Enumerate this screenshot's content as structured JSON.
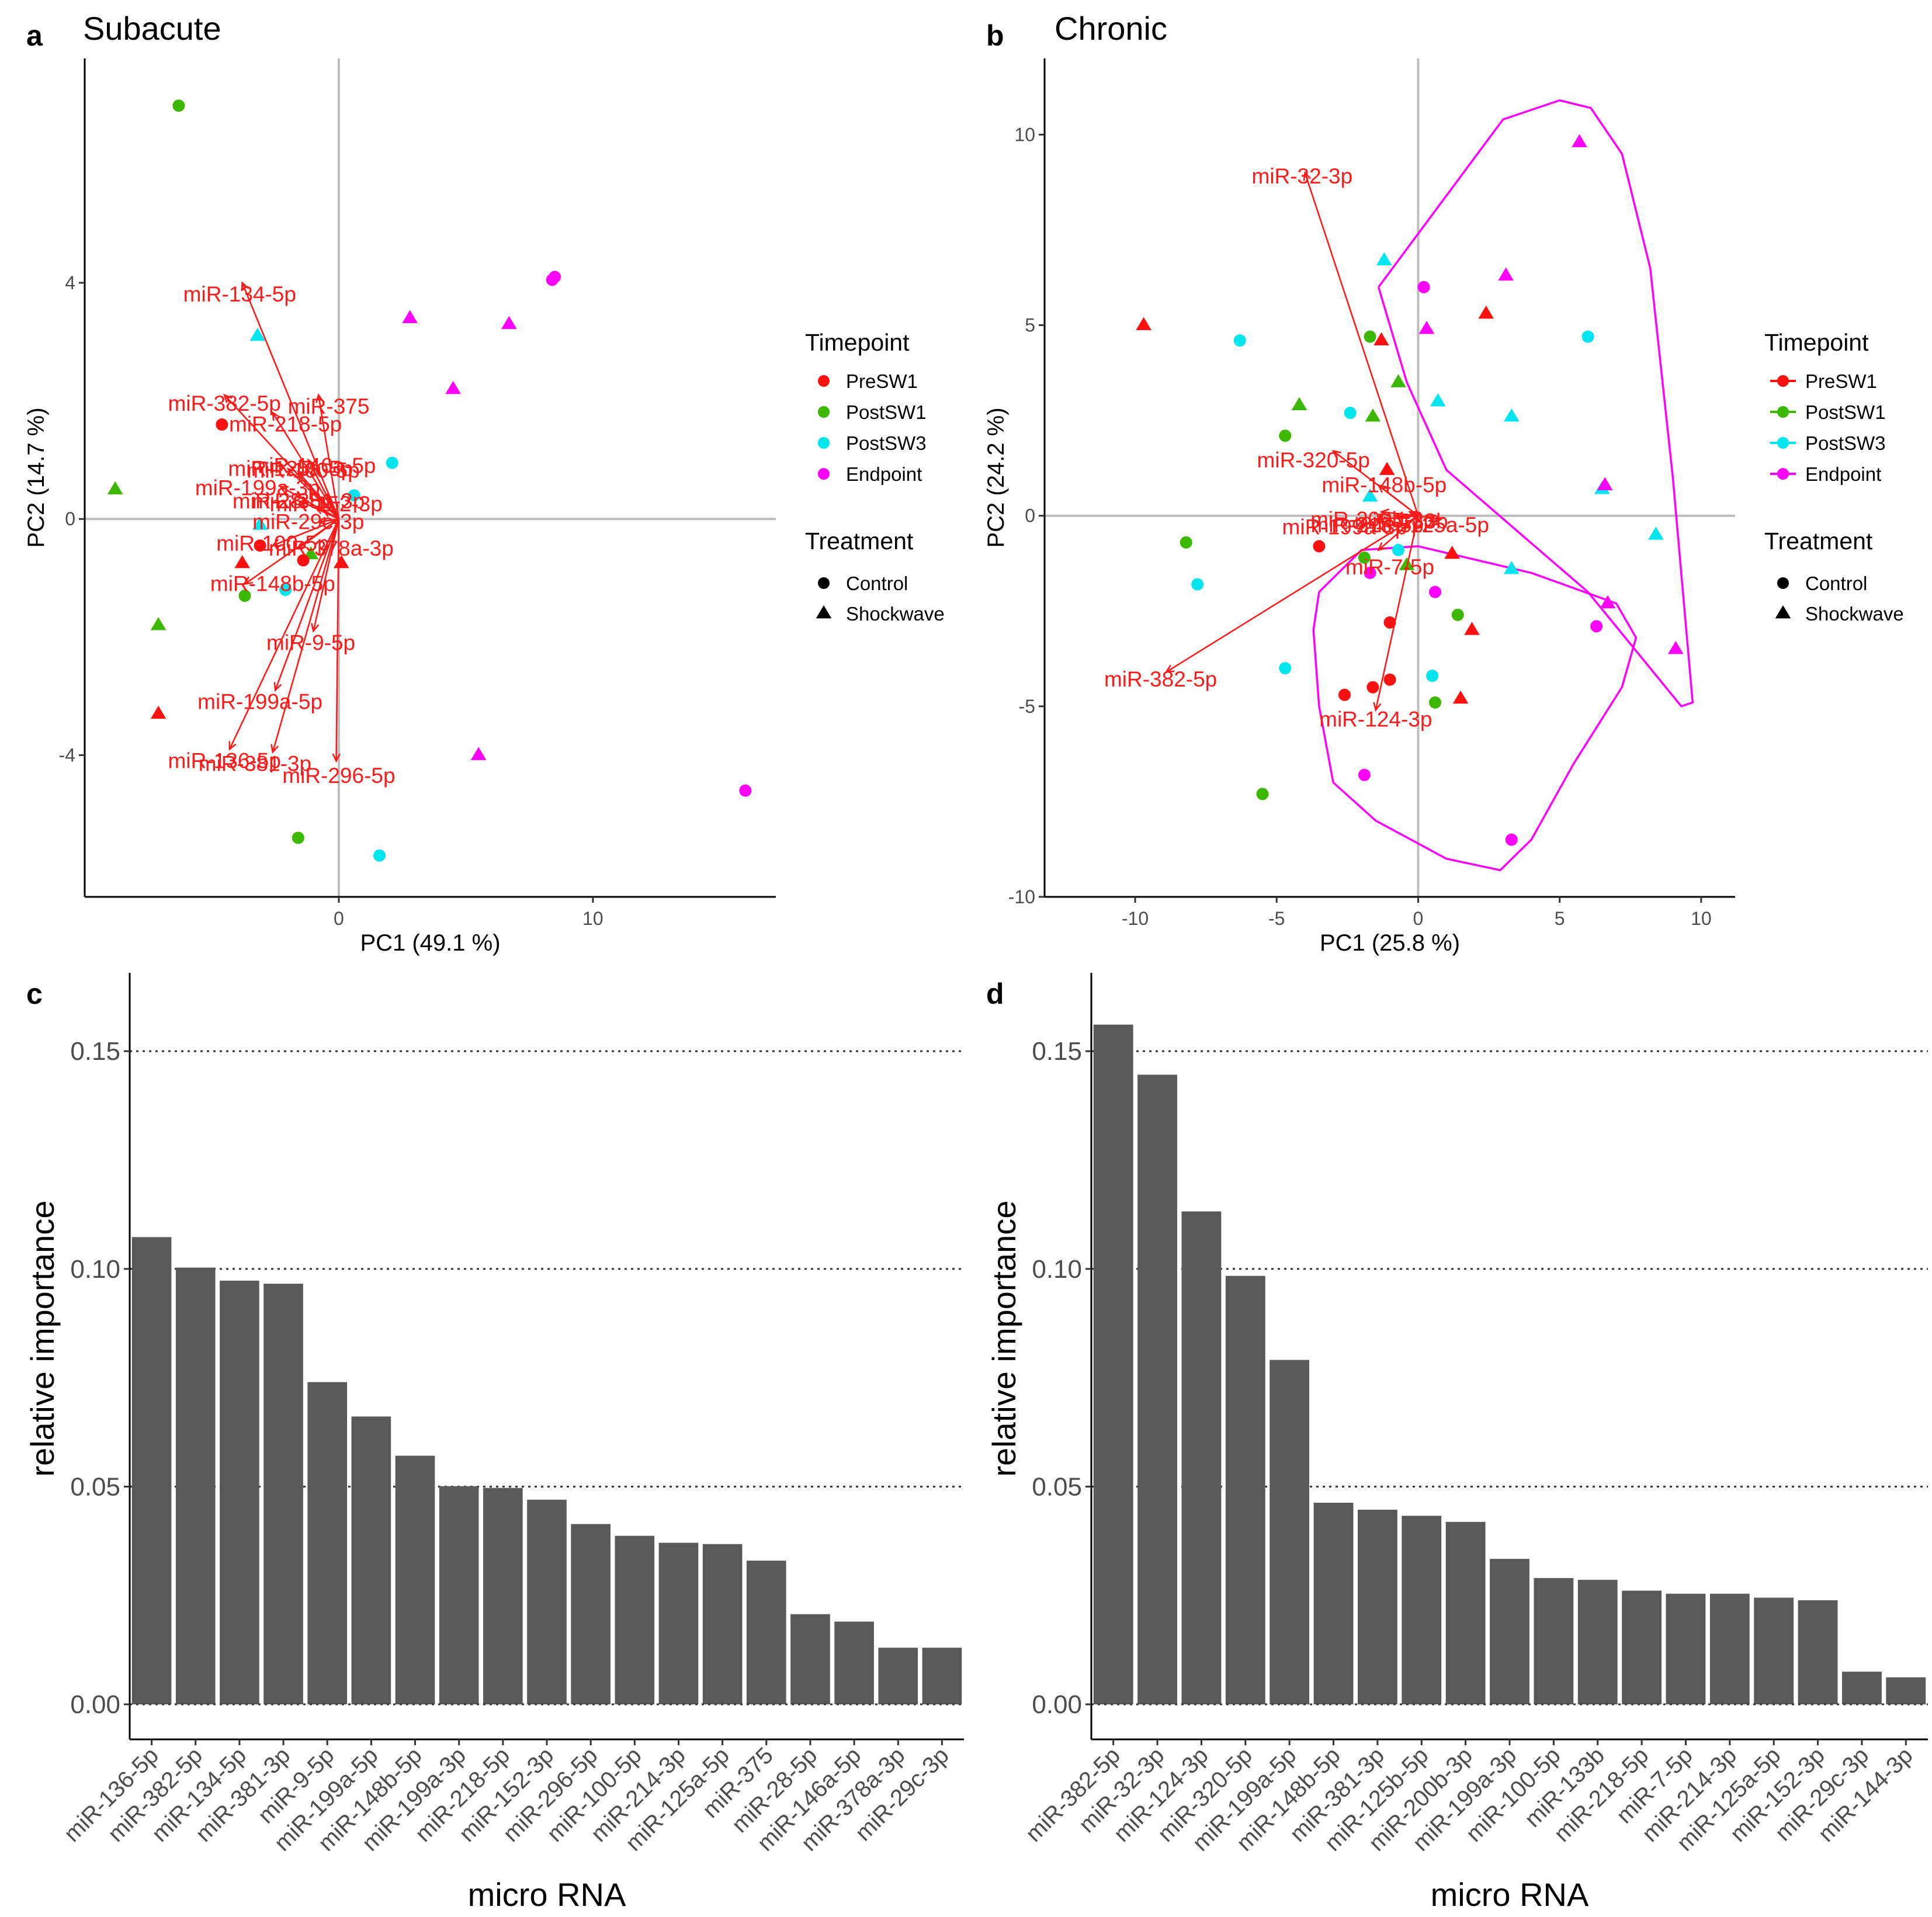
{
  "colors": {
    "text": "#1a1a1a",
    "loading": "#ff1a1a",
    "zero_line": "#bdbdbd",
    "bar_fill": "#595959",
    "grid": "#333333",
    "hull": "#ff00ff",
    "PreSW1": "#ff1010",
    "PostSW1": "#3cb800",
    "PostSW3": "#00e5ee",
    "Endpoint": "#ff00ff"
  },
  "legend": {
    "timepoint_title": "Timepoint",
    "timepoint_items": [
      "PreSW1",
      "PostSW1",
      "PostSW3",
      "Endpoint"
    ],
    "treatment_title": "Treatment",
    "treatment_items": [
      {
        "label": "Control",
        "shape": "circle"
      },
      {
        "label": "Shockwave",
        "shape": "triangle"
      }
    ]
  },
  "chart_data": [
    {
      "panel": "a",
      "type": "scatter",
      "subtype": "pca-biplot",
      "title": "Subacute",
      "xlabel": "PC1 (49.1 %)",
      "ylabel": "PC2 (14.7 %)",
      "xlim": [
        -10,
        17.2
      ],
      "ylim": [
        -6.4,
        7.8
      ],
      "xticks": [
        0,
        10
      ],
      "yticks": [
        -4,
        0,
        4
      ],
      "points": [
        {
          "x": -6.3,
          "y": 7.0,
          "tp": "PostSW1",
          "trt": "Control"
        },
        {
          "x": 8.5,
          "y": 4.1,
          "tp": "Endpoint",
          "trt": "Control"
        },
        {
          "x": 8.4,
          "y": 4.05,
          "tp": "Endpoint",
          "trt": "Control"
        },
        {
          "x": 2.8,
          "y": 3.4,
          "tp": "Endpoint",
          "trt": "Shockwave"
        },
        {
          "x": 6.7,
          "y": 3.3,
          "tp": "Endpoint",
          "trt": "Shockwave"
        },
        {
          "x": -3.2,
          "y": 3.1,
          "tp": "PostSW3",
          "trt": "Shockwave"
        },
        {
          "x": 4.5,
          "y": 2.2,
          "tp": "Endpoint",
          "trt": "Shockwave"
        },
        {
          "x": -4.6,
          "y": 1.6,
          "tp": "PreSW1",
          "trt": "Control"
        },
        {
          "x": 2.1,
          "y": 0.95,
          "tp": "PostSW3",
          "trt": "Control"
        },
        {
          "x": -8.8,
          "y": 0.5,
          "tp": "PostSW1",
          "trt": "Shockwave"
        },
        {
          "x": 0.6,
          "y": 0.4,
          "tp": "PostSW3",
          "trt": "Control"
        },
        {
          "x": -3.1,
          "y": -0.1,
          "tp": "PostSW3",
          "trt": "Shockwave"
        },
        {
          "x": -3.1,
          "y": -0.45,
          "tp": "PreSW1",
          "trt": "Control"
        },
        {
          "x": -1.1,
          "y": -0.6,
          "tp": "PostSW1",
          "trt": "Shockwave"
        },
        {
          "x": -1.4,
          "y": -0.7,
          "tp": "PreSW1",
          "trt": "Control"
        },
        {
          "x": -3.8,
          "y": -0.75,
          "tp": "PreSW1",
          "trt": "Shockwave"
        },
        {
          "x": 0.1,
          "y": -0.75,
          "tp": "PreSW1",
          "trt": "Shockwave"
        },
        {
          "x": -2.1,
          "y": -1.2,
          "tp": "PostSW3",
          "trt": "Control"
        },
        {
          "x": -3.7,
          "y": -1.3,
          "tp": "PostSW1",
          "trt": "Control"
        },
        {
          "x": -7.1,
          "y": -1.8,
          "tp": "PostSW1",
          "trt": "Shockwave"
        },
        {
          "x": -7.1,
          "y": -3.3,
          "tp": "PreSW1",
          "trt": "Shockwave"
        },
        {
          "x": 5.5,
          "y": -4.0,
          "tp": "Endpoint",
          "trt": "Shockwave"
        },
        {
          "x": 16.0,
          "y": -4.6,
          "tp": "Endpoint",
          "trt": "Control"
        },
        {
          "x": -1.6,
          "y": -5.4,
          "tp": "PostSW1",
          "trt": "Control"
        },
        {
          "x": 1.6,
          "y": -5.7,
          "tp": "PostSW3",
          "trt": "Control"
        }
      ],
      "loadings": [
        {
          "label": "miR-134-5p",
          "x": -3.8,
          "y": 4.0,
          "lx": -3.9,
          "ly": 3.8
        },
        {
          "label": "miR-382-5p",
          "x": -4.5,
          "y": 2.1,
          "lx": -4.5,
          "ly": 1.95
        },
        {
          "label": "miR-375",
          "x": -0.8,
          "y": 2.1,
          "lx": -0.4,
          "ly": 1.9
        },
        {
          "label": "miR-218-5p",
          "x": -2.6,
          "y": 1.8,
          "lx": -2.1,
          "ly": 1.6
        },
        {
          "label": "miR-146a-5p",
          "x": -1.2,
          "y": 1.0,
          "lx": -1.0,
          "ly": 0.9
        },
        {
          "label": "miR-125a-5p",
          "x": -2.0,
          "y": 0.85,
          "lx": -1.9,
          "ly": 0.85
        },
        {
          "label": "miR-100-5p",
          "x": -1.6,
          "y": 0.8,
          "lx": -1.4,
          "ly": 0.82
        },
        {
          "label": "miR-199a-3p",
          "x": -2.3,
          "y": 0.55,
          "lx": -3.2,
          "ly": 0.52
        },
        {
          "label": "miR-28-5p",
          "x": -1.5,
          "y": 0.3,
          "lx": -2.2,
          "ly": 0.3
        },
        {
          "label": "miR-29c-3p",
          "x": -0.8,
          "y": -0.05,
          "lx": -1.2,
          "ly": -0.05
        },
        {
          "label": "miR-152-3p",
          "x": -0.6,
          "y": 0.15,
          "lx": -0.5,
          "ly": 0.25
        },
        {
          "label": "miR-381-3p",
          "x": -0.9,
          "y": 0.2,
          "lx": -1.2,
          "ly": 0.3
        },
        {
          "label": "miR-100-5p",
          "x": -2.6,
          "y": -0.45,
          "lx": -2.6,
          "ly": -0.42
        },
        {
          "label": "miR-378a-3p",
          "x": -1.6,
          "y": -0.5,
          "lx": -0.3,
          "ly": -0.5
        },
        {
          "label": "miR-148b-5p",
          "x": -3.7,
          "y": -1.1,
          "lx": -2.6,
          "ly": -1.1
        },
        {
          "label": "miR-9-5p",
          "x": -1.0,
          "y": -1.9,
          "lx": -1.1,
          "ly": -2.1
        },
        {
          "label": "miR-199a-5p",
          "x": -2.5,
          "y": -2.9,
          "lx": -3.1,
          "ly": -3.1
        },
        {
          "label": "miR-136-5p",
          "x": -4.3,
          "y": -3.9,
          "lx": -4.5,
          "ly": -4.1
        },
        {
          "label": "miR-381-3p",
          "x": -2.6,
          "y": -3.95,
          "lx": -3.3,
          "ly": -4.15
        },
        {
          "label": "miR-296-5p",
          "x": -0.1,
          "y": -4.1,
          "lx": 0.0,
          "ly": -4.35
        }
      ]
    },
    {
      "panel": "b",
      "type": "scatter",
      "subtype": "pca-biplot",
      "title": "Chronic",
      "xlabel": "PC1 (25.8 %)",
      "ylabel": "PC2 (24.2 %)",
      "xlim": [
        -13.2,
        11.2
      ],
      "ylim": [
        -10,
        12
      ],
      "xticks": [
        -10,
        -5,
        0,
        5,
        10
      ],
      "yticks": [
        -10,
        -5,
        0,
        5,
        10
      ],
      "points": [
        {
          "x": 5.7,
          "y": 9.8,
          "tp": "Endpoint",
          "trt": "Shockwave"
        },
        {
          "x": -1.2,
          "y": 6.7,
          "tp": "PostSW3",
          "trt": "Shockwave"
        },
        {
          "x": 3.1,
          "y": 6.3,
          "tp": "Endpoint",
          "trt": "Shockwave"
        },
        {
          "x": 0.2,
          "y": 6.0,
          "tp": "Endpoint",
          "trt": "Control"
        },
        {
          "x": 2.4,
          "y": 5.3,
          "tp": "PreSW1",
          "trt": "Shockwave"
        },
        {
          "x": -9.7,
          "y": 5.0,
          "tp": "PreSW1",
          "trt": "Shockwave"
        },
        {
          "x": 0.3,
          "y": 4.9,
          "tp": "Endpoint",
          "trt": "Shockwave"
        },
        {
          "x": -6.3,
          "y": 4.6,
          "tp": "PostSW3",
          "trt": "Control"
        },
        {
          "x": -1.7,
          "y": 4.7,
          "tp": "PostSW1",
          "trt": "Control"
        },
        {
          "x": -1.3,
          "y": 4.6,
          "tp": "PreSW1",
          "trt": "Shockwave"
        },
        {
          "x": 6.0,
          "y": 4.7,
          "tp": "PostSW3",
          "trt": "Control"
        },
        {
          "x": -0.7,
          "y": 3.5,
          "tp": "PostSW1",
          "trt": "Shockwave"
        },
        {
          "x": 0.7,
          "y": 3.0,
          "tp": "PostSW3",
          "trt": "Shockwave"
        },
        {
          "x": -4.2,
          "y": 2.9,
          "tp": "PostSW1",
          "trt": "Shockwave"
        },
        {
          "x": -2.4,
          "y": 2.7,
          "tp": "PostSW3",
          "trt": "Control"
        },
        {
          "x": -1.6,
          "y": 2.6,
          "tp": "PostSW1",
          "trt": "Shockwave"
        },
        {
          "x": 3.3,
          "y": 2.6,
          "tp": "PostSW3",
          "trt": "Shockwave"
        },
        {
          "x": -4.7,
          "y": 2.1,
          "tp": "PostSW1",
          "trt": "Control"
        },
        {
          "x": -1.1,
          "y": 1.2,
          "tp": "PreSW1",
          "trt": "Shockwave"
        },
        {
          "x": 6.5,
          "y": 0.7,
          "tp": "PostSW3",
          "trt": "Shockwave"
        },
        {
          "x": 6.6,
          "y": 0.8,
          "tp": "Endpoint",
          "trt": "Shockwave"
        },
        {
          "x": -1.7,
          "y": 0.5,
          "tp": "PostSW3",
          "trt": "Shockwave"
        },
        {
          "x": 8.4,
          "y": -0.5,
          "tp": "PostSW3",
          "trt": "Shockwave"
        },
        {
          "x": -8.2,
          "y": -0.7,
          "tp": "PostSW1",
          "trt": "Control"
        },
        {
          "x": -3.5,
          "y": -0.8,
          "tp": "PreSW1",
          "trt": "Control"
        },
        {
          "x": -0.7,
          "y": -0.9,
          "tp": "PostSW3",
          "trt": "Control"
        },
        {
          "x": 1.2,
          "y": -1.0,
          "tp": "PreSW1",
          "trt": "Shockwave"
        },
        {
          "x": -1.9,
          "y": -1.1,
          "tp": "PostSW1",
          "trt": "Control"
        },
        {
          "x": -0.4,
          "y": -1.3,
          "tp": "PostSW1",
          "trt": "Shockwave"
        },
        {
          "x": 3.3,
          "y": -1.4,
          "tp": "PostSW3",
          "trt": "Shockwave"
        },
        {
          "x": -1.7,
          "y": -1.5,
          "tp": "Endpoint",
          "trt": "Control"
        },
        {
          "x": -7.8,
          "y": -1.8,
          "tp": "PostSW3",
          "trt": "Control"
        },
        {
          "x": 0.6,
          "y": -2.0,
          "tp": "Endpoint",
          "trt": "Control"
        },
        {
          "x": 6.7,
          "y": -2.3,
          "tp": "Endpoint",
          "trt": "Shockwave"
        },
        {
          "x": 1.4,
          "y": -2.6,
          "tp": "PostSW1",
          "trt": "Control"
        },
        {
          "x": -1.0,
          "y": -2.8,
          "tp": "PreSW1",
          "trt": "Control"
        },
        {
          "x": 6.3,
          "y": -2.9,
          "tp": "Endpoint",
          "trt": "Control"
        },
        {
          "x": 1.9,
          "y": -3.0,
          "tp": "PreSW1",
          "trt": "Shockwave"
        },
        {
          "x": 9.1,
          "y": -3.5,
          "tp": "Endpoint",
          "trt": "Shockwave"
        },
        {
          "x": -4.7,
          "y": -4.0,
          "tp": "PostSW3",
          "trt": "Control"
        },
        {
          "x": 0.5,
          "y": -4.2,
          "tp": "PostSW3",
          "trt": "Control"
        },
        {
          "x": -1.0,
          "y": -4.3,
          "tp": "PreSW1",
          "trt": "Control"
        },
        {
          "x": -1.6,
          "y": -4.5,
          "tp": "PreSW1",
          "trt": "Control"
        },
        {
          "x": -2.6,
          "y": -4.7,
          "tp": "PreSW1",
          "trt": "Control"
        },
        {
          "x": 1.5,
          "y": -4.8,
          "tp": "PreSW1",
          "trt": "Shockwave"
        },
        {
          "x": 0.6,
          "y": -4.9,
          "tp": "PostSW1",
          "trt": "Control"
        },
        {
          "x": -5.5,
          "y": -7.3,
          "tp": "PostSW1",
          "trt": "Control"
        },
        {
          "x": -1.9,
          "y": -6.8,
          "tp": "Endpoint",
          "trt": "Control"
        },
        {
          "x": 3.3,
          "y": -8.5,
          "tp": "Endpoint",
          "trt": "Control"
        }
      ],
      "loadings": [
        {
          "label": "miR-32-3p",
          "x": -4.0,
          "y": 9.0,
          "lx": -4.1,
          "ly": 8.9
        },
        {
          "label": "miR-320-5p",
          "x": -3.0,
          "y": 1.7,
          "lx": -3.7,
          "ly": 1.45
        },
        {
          "label": "miR-148b-5p",
          "x": -1.4,
          "y": 0.8,
          "lx": -1.2,
          "ly": 0.8
        },
        {
          "label": "miR-200b-3p",
          "x": -1.3,
          "y": 0.1,
          "lx": -1.6,
          "ly": -0.1
        },
        {
          "label": "miR-218-5p",
          "x": -0.8,
          "y": 0.0,
          "lx": -1.8,
          "ly": -0.25
        },
        {
          "label": "miR-199a-3p",
          "x": -1.5,
          "y": -0.1,
          "lx": -2.6,
          "ly": -0.3
        },
        {
          "label": "miR-133b",
          "x": -0.3,
          "y": 0.1,
          "lx": -0.6,
          "ly": -0.15
        },
        {
          "label": "miR-125a-5p",
          "x": 0.8,
          "y": -0.1,
          "lx": 0.3,
          "ly": -0.25
        },
        {
          "label": "miR-7-5p",
          "x": -1.4,
          "y": -0.9,
          "lx": -1.0,
          "ly": -1.35
        },
        {
          "label": "miR-382-5p",
          "x": -8.9,
          "y": -4.1,
          "lx": -9.1,
          "ly": -4.3
        },
        {
          "label": "miR-124-3p",
          "x": -1.5,
          "y": -5.1,
          "lx": -1.5,
          "ly": -5.35
        }
      ],
      "hulls": [
        [
          [
            -1.4,
            6.0
          ],
          [
            3.0,
            10.4
          ],
          [
            5.0,
            10.9
          ],
          [
            6.1,
            10.7
          ],
          [
            7.2,
            9.5
          ],
          [
            8.2,
            6.5
          ],
          [
            9.0,
            1.0
          ],
          [
            9.7,
            -4.9
          ],
          [
            9.3,
            -5.0
          ],
          [
            6.0,
            -2.0
          ],
          [
            1.0,
            1.2
          ],
          [
            -0.4,
            3.5
          ],
          [
            -1.4,
            6.0
          ]
        ],
        [
          [
            -3.5,
            -2.0
          ],
          [
            -2.0,
            -0.9
          ],
          [
            0.0,
            -0.8
          ],
          [
            4.0,
            -1.5
          ],
          [
            7.0,
            -2.3
          ],
          [
            7.7,
            -3.2
          ],
          [
            7.2,
            -4.5
          ],
          [
            5.5,
            -6.5
          ],
          [
            4.0,
            -8.5
          ],
          [
            2.9,
            -9.3
          ],
          [
            1.0,
            -9.0
          ],
          [
            -1.5,
            -8.0
          ],
          [
            -3.0,
            -7.0
          ],
          [
            -3.5,
            -5.0
          ],
          [
            -3.7,
            -3.0
          ],
          [
            -3.5,
            -2.0
          ]
        ]
      ]
    },
    {
      "panel": "c",
      "type": "bar",
      "title": "",
      "xlabel": "micro RNA",
      "ylabel": "relative importance",
      "ylim": [
        0,
        0.168
      ],
      "yticks": [
        "0.00",
        "0.05",
        "0.10",
        "0.15"
      ],
      "categories": [
        "miR-136-5p",
        "miR-382-5p",
        "miR-134-5p",
        "miR-381-3p",
        "miR-9-5p",
        "miR-199a-5p",
        "miR-148b-5p",
        "miR-199a-3p",
        "miR-218-5p",
        "miR-152-3p",
        "miR-296-5p",
        "miR-100-5p",
        "miR-214-3p",
        "miR-125a-5p",
        "miR-375",
        "miR-28-5p",
        "miR-146a-5p",
        "miR-378a-3p",
        "miR-29c-3p"
      ],
      "values": [
        0.1073,
        0.1003,
        0.0973,
        0.0966,
        0.074,
        0.0661,
        0.0571,
        0.0501,
        0.0497,
        0.047,
        0.0414,
        0.0387,
        0.0371,
        0.0368,
        0.033,
        0.0207,
        0.019,
        0.013,
        0.013
      ]
    },
    {
      "panel": "d",
      "type": "bar",
      "title": "",
      "xlabel": "micro RNA",
      "ylabel": "relative importance",
      "ylim": [
        0,
        0.168
      ],
      "yticks": [
        "0.00",
        "0.05",
        "0.10",
        "0.15"
      ],
      "categories": [
        "miR-382-5p",
        "miR-32-3p",
        "miR-124-3p",
        "miR-320-5p",
        "miR-199a-5p",
        "miR-148b-5p",
        "miR-381-3p",
        "miR-125b-5p",
        "miR-200b-3p",
        "miR-199a-3p",
        "miR-100-5p",
        "miR-133b",
        "miR-218-5p",
        "miR-7-5p",
        "miR-214-3p",
        "miR-125a-5p",
        "miR-152-3p",
        "miR-29c-3p",
        "miR-144-3p"
      ],
      "values": [
        0.1561,
        0.1446,
        0.1132,
        0.0984,
        0.0791,
        0.0463,
        0.0447,
        0.0433,
        0.0419,
        0.0334,
        0.029,
        0.0286,
        0.0261,
        0.0254,
        0.0254,
        0.0245,
        0.0239,
        0.0075,
        0.0062
      ]
    }
  ]
}
